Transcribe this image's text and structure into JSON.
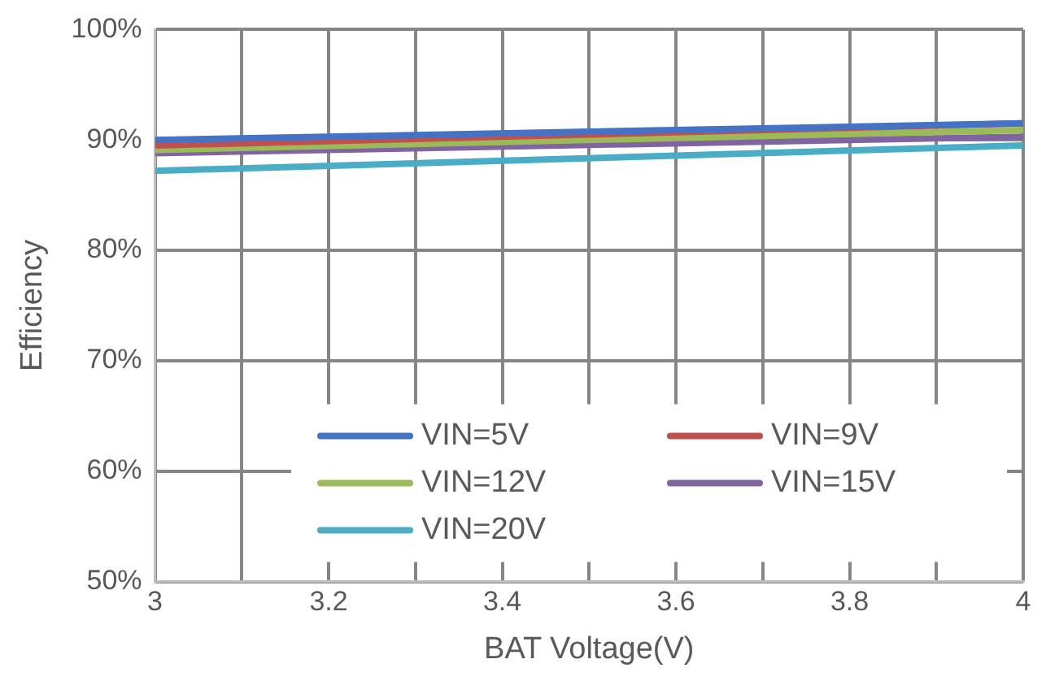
{
  "chart_data": {
    "type": "line",
    "xlabel": "BAT Voltage(V)",
    "ylabel": "Efficiency",
    "x": [
      3,
      4
    ],
    "series": [
      {
        "name": "VIN=5V",
        "color": "#4472c4",
        "values": [
          90.0,
          91.5
        ]
      },
      {
        "name": "VIN=9V",
        "color": "#c0504d",
        "values": [
          89.5,
          91.5
        ]
      },
      {
        "name": "VIN=12V",
        "color": "#9bbb59",
        "values": [
          89.1,
          90.9
        ]
      },
      {
        "name": "VIN=15V",
        "color": "#8064a2",
        "values": [
          88.8,
          90.3
        ]
      },
      {
        "name": "VIN=20V",
        "color": "#4bacc6",
        "values": [
          87.2,
          89.5
        ]
      }
    ],
    "xlim": [
      3,
      4
    ],
    "xticks": [
      3,
      {
        "value": 3.1,
        "label": null
      },
      3.2,
      {
        "value": 3.3,
        "label": null
      },
      3.4,
      {
        "value": 3.5,
        "label": null
      },
      3.6,
      {
        "value": 3.7,
        "label": null
      },
      3.8,
      {
        "value": 3.9,
        "label": null
      },
      4
    ],
    "ylim": [
      50,
      100
    ],
    "yticks": [
      {
        "value": 50,
        "label": "50%"
      },
      {
        "value": 60,
        "label": "60%"
      },
      {
        "value": 70,
        "label": "70%"
      },
      {
        "value": 80,
        "label": "80%"
      },
      {
        "value": 90,
        "label": "90%"
      },
      {
        "value": 100,
        "label": "100%"
      }
    ],
    "grid": true,
    "legend": "bottom right",
    "marker": "none",
    "line_style": "solid"
  }
}
